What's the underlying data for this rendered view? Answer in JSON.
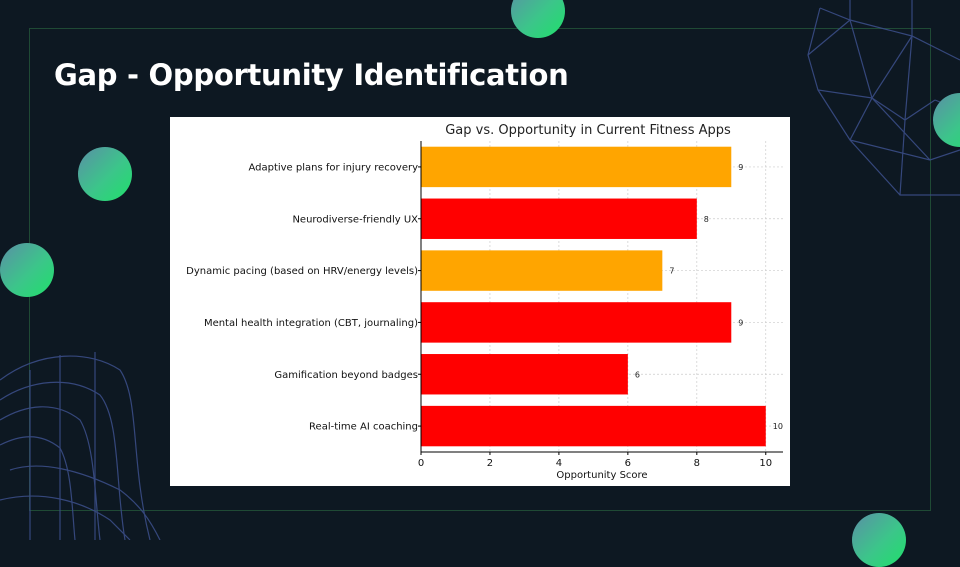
{
  "slide": {
    "title": "Gap - Opportunity Identification"
  },
  "colors": {
    "background": "#0d1822",
    "accent_green": "#1fe06a",
    "bar_orange": "#FFA500",
    "bar_red": "#FF0000"
  },
  "chart_data": {
    "type": "bar",
    "orientation": "horizontal",
    "title": "Gap vs. Opportunity in Current Fitness Apps",
    "xlabel": "Opportunity Score",
    "ylabel": "",
    "xlim": [
      0,
      10.5
    ],
    "xticks": [
      0,
      2,
      4,
      6,
      8,
      10
    ],
    "grid": true,
    "categories": [
      "Adaptive plans for injury recovery",
      "Neurodiverse-friendly UX",
      "Dynamic pacing (based on HRV/energy levels)",
      "Mental health integration (CBT, journaling)",
      "Gamification beyond badges",
      "Real-time AI coaching"
    ],
    "values": [
      9,
      8,
      7,
      9,
      6,
      10
    ],
    "bar_colors": [
      "#FFA500",
      "#FF0000",
      "#FFA500",
      "#FF0000",
      "#FF0000",
      "#FF0000"
    ]
  }
}
